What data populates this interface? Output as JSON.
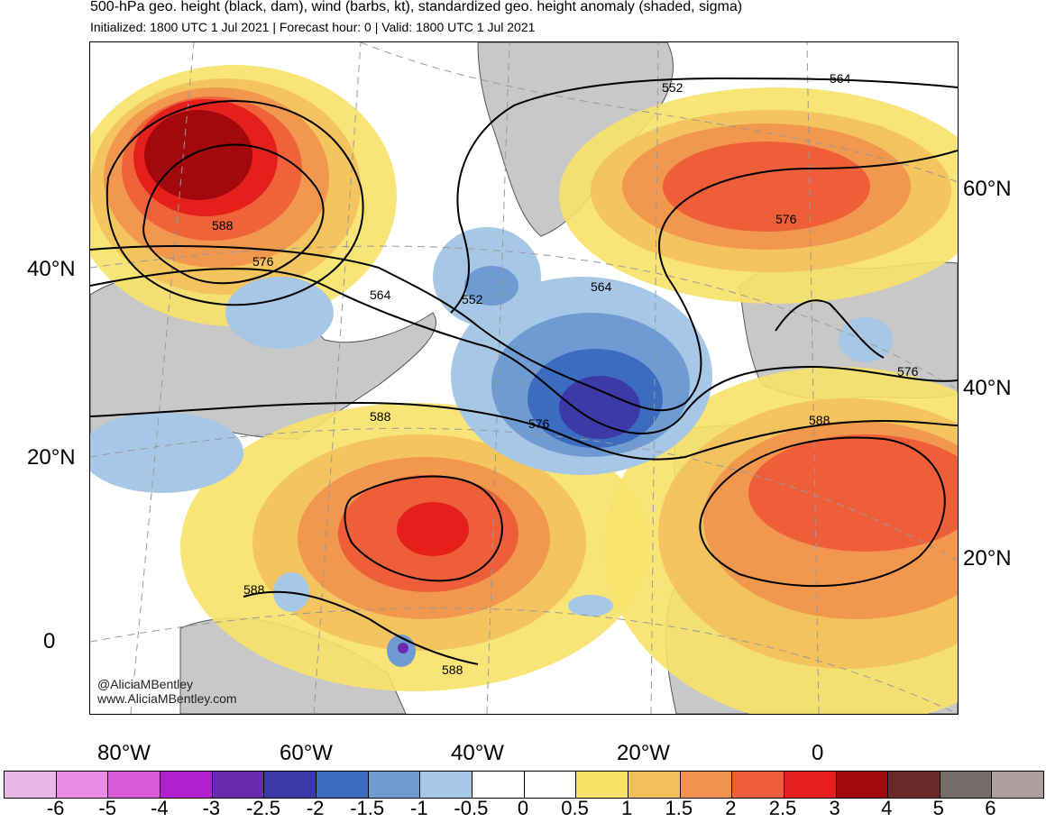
{
  "header": {
    "title": "500-hPa geo. height (black, dam), wind (barbs, kt), standardized geo. height anomaly (shaded, sigma)",
    "subtitle": "Initialized: 1800 UTC 1 Jul 2021 | Forecast hour: 0 | Valid: 1800 UTC 1 Jul 2021"
  },
  "map": {
    "lat_labels_left": [
      "40°N",
      "20°N",
      "0"
    ],
    "lat_labels_right": [
      "60°N",
      "40°N",
      "20°N"
    ],
    "lon_labels_bottom": [
      "80°W",
      "60°W",
      "40°W",
      "20°W",
      "0"
    ],
    "contour_labels": [
      "552",
      "564",
      "588",
      "576",
      "564",
      "552",
      "564",
      "576",
      "576",
      "588",
      "576",
      "588",
      "588",
      "588"
    ],
    "credits": [
      "@AliciaMBentley",
      "www.AliciaMBentley.com"
    ],
    "colors": {
      "land": "#c8c8c8",
      "contour": "#000000",
      "coast": "#555555"
    }
  },
  "colorbar": {
    "labels": [
      "-6",
      "-5",
      "-4",
      "-3",
      "-2.5",
      "-2",
      "-1.5",
      "-1",
      "-0.5",
      "0",
      "0.5",
      "1",
      "1.5",
      "2",
      "2.5",
      "3",
      "4",
      "5",
      "6"
    ],
    "colors": [
      "#e9b8e6",
      "#e98ae3",
      "#d95ad6",
      "#b11fd1",
      "#6a2ab0",
      "#3c3aa6",
      "#3b6cc0",
      "#6f9bd3",
      "#a6c8e6",
      "#ffffff",
      "#ffffff",
      "#f8e268",
      "#f3c05c",
      "#f1934d",
      "#ee5f39",
      "#e41f1c",
      "#a3080c",
      "#6a2a29",
      "#786c6a",
      "#aea09f"
    ]
  }
}
